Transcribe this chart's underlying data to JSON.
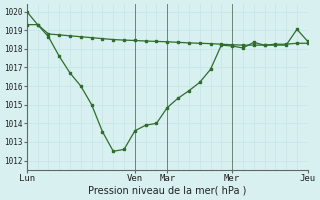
{
  "background_color": "#d8f0f0",
  "grid_color_minor": "#c8e4e4",
  "grid_color_major": "#aacfcf",
  "line_color": "#2d6e2d",
  "xlabel": "Pression niveau de la mer( hPa )",
  "xtick_labels": [
    "Lun",
    "Ven",
    "Mar",
    "Mer",
    "Jeu"
  ],
  "xtick_positions": [
    0,
    10,
    13,
    19,
    26
  ],
  "vline_positions": [
    0,
    10,
    13,
    19,
    26
  ],
  "vline_color": "#3a5a3a",
  "xlim": [
    0,
    26
  ],
  "ylim": [
    1011.5,
    1020.4
  ],
  "yticks": [
    1012,
    1013,
    1014,
    1015,
    1016,
    1017,
    1018,
    1019,
    1020
  ],
  "series1_x": [
    0,
    1,
    2,
    3,
    4,
    5,
    6,
    7,
    8,
    9,
    10,
    11,
    12,
    13,
    14,
    15,
    16,
    17,
    18,
    19,
    20,
    21,
    22,
    23,
    24,
    25,
    26
  ],
  "series1_y": [
    1020.0,
    1019.3,
    1018.65,
    1017.6,
    1016.7,
    1016.0,
    1015.0,
    1013.55,
    1012.5,
    1012.6,
    1013.6,
    1013.9,
    1014.0,
    1014.85,
    1015.35,
    1015.75,
    1016.2,
    1016.9,
    1018.2,
    1018.15,
    1018.05,
    1018.35,
    1018.2,
    1018.25,
    1018.25,
    1018.3,
    1018.3
  ],
  "series2_x": [
    0,
    1,
    2,
    3,
    4,
    5,
    6,
    7,
    8,
    9,
    10,
    11,
    12,
    13,
    14,
    15,
    16,
    17,
    18,
    19,
    20,
    21,
    22,
    23,
    24,
    25,
    26
  ],
  "series2_y": [
    1019.3,
    1019.3,
    1018.8,
    1018.75,
    1018.7,
    1018.65,
    1018.6,
    1018.55,
    1018.5,
    1018.47,
    1018.45,
    1018.42,
    1018.4,
    1018.38,
    1018.35,
    1018.32,
    1018.3,
    1018.28,
    1018.25,
    1018.22,
    1018.2,
    1018.2,
    1018.2,
    1018.2,
    1018.2,
    1019.05,
    1018.4
  ]
}
